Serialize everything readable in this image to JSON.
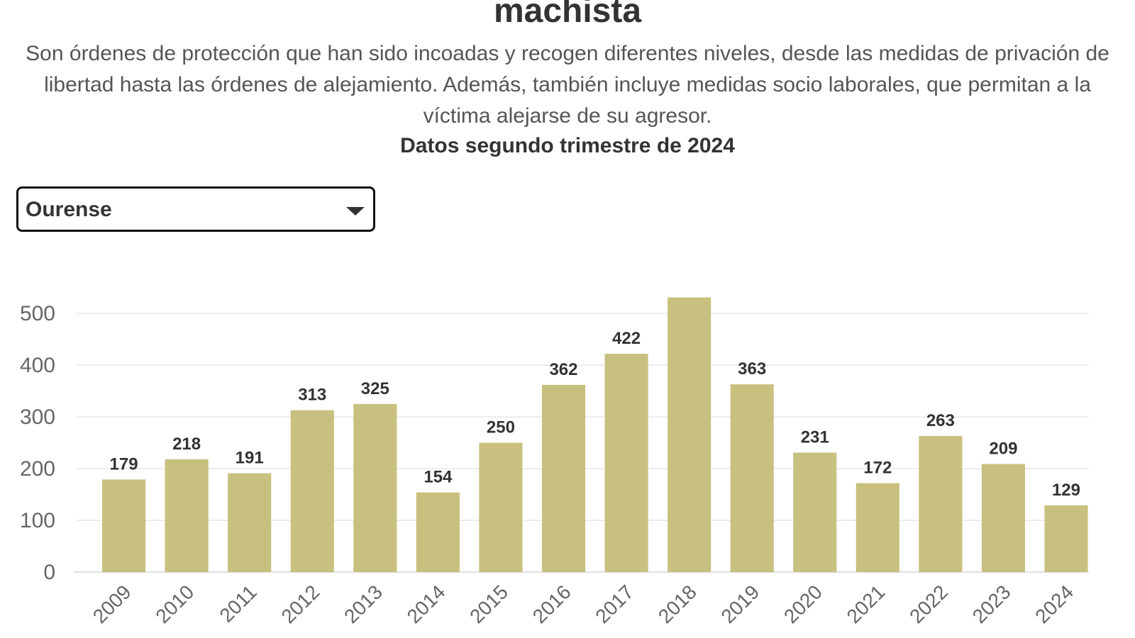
{
  "header": {
    "title": "machista",
    "subtitle": "Son órdenes de protección que han sido incoadas y recogen diferentes niveles, desde las medidas de privación de libertad hasta las órdenes de alejamiento. Además, también incluye medidas socio laborales, que permitan a la víctima alejarse de su agresor.",
    "date_note": "Datos segundo trimestre de 2024"
  },
  "filter": {
    "selected": "Ourense",
    "icon": "chevron-down-icon"
  },
  "colors": {
    "bar": "#c8c07e",
    "grid": "#e6e6e6",
    "axis_text": "#666666",
    "label_text": "#333333"
  },
  "chart_data": {
    "type": "bar",
    "title": "",
    "xlabel": "",
    "ylabel": "",
    "categories": [
      "2009",
      "2010",
      "2011",
      "2012",
      "2013",
      "2014",
      "2015",
      "2016",
      "2017",
      "2018",
      "2019",
      "2020",
      "2021",
      "2022",
      "2023",
      "2024"
    ],
    "values": [
      179,
      218,
      191,
      313,
      325,
      154,
      250,
      362,
      422,
      531,
      363,
      231,
      172,
      263,
      209,
      129
    ],
    "data_labels": [
      "179",
      "218",
      "191",
      "313",
      "325",
      "154",
      "250",
      "362",
      "422",
      "",
      "363",
      "231",
      "172",
      "263",
      "209",
      "129"
    ],
    "y_ticks": [
      0,
      100,
      200,
      300,
      400,
      500
    ],
    "ylim": [
      0,
      540
    ],
    "grid": true,
    "legend": "none"
  }
}
